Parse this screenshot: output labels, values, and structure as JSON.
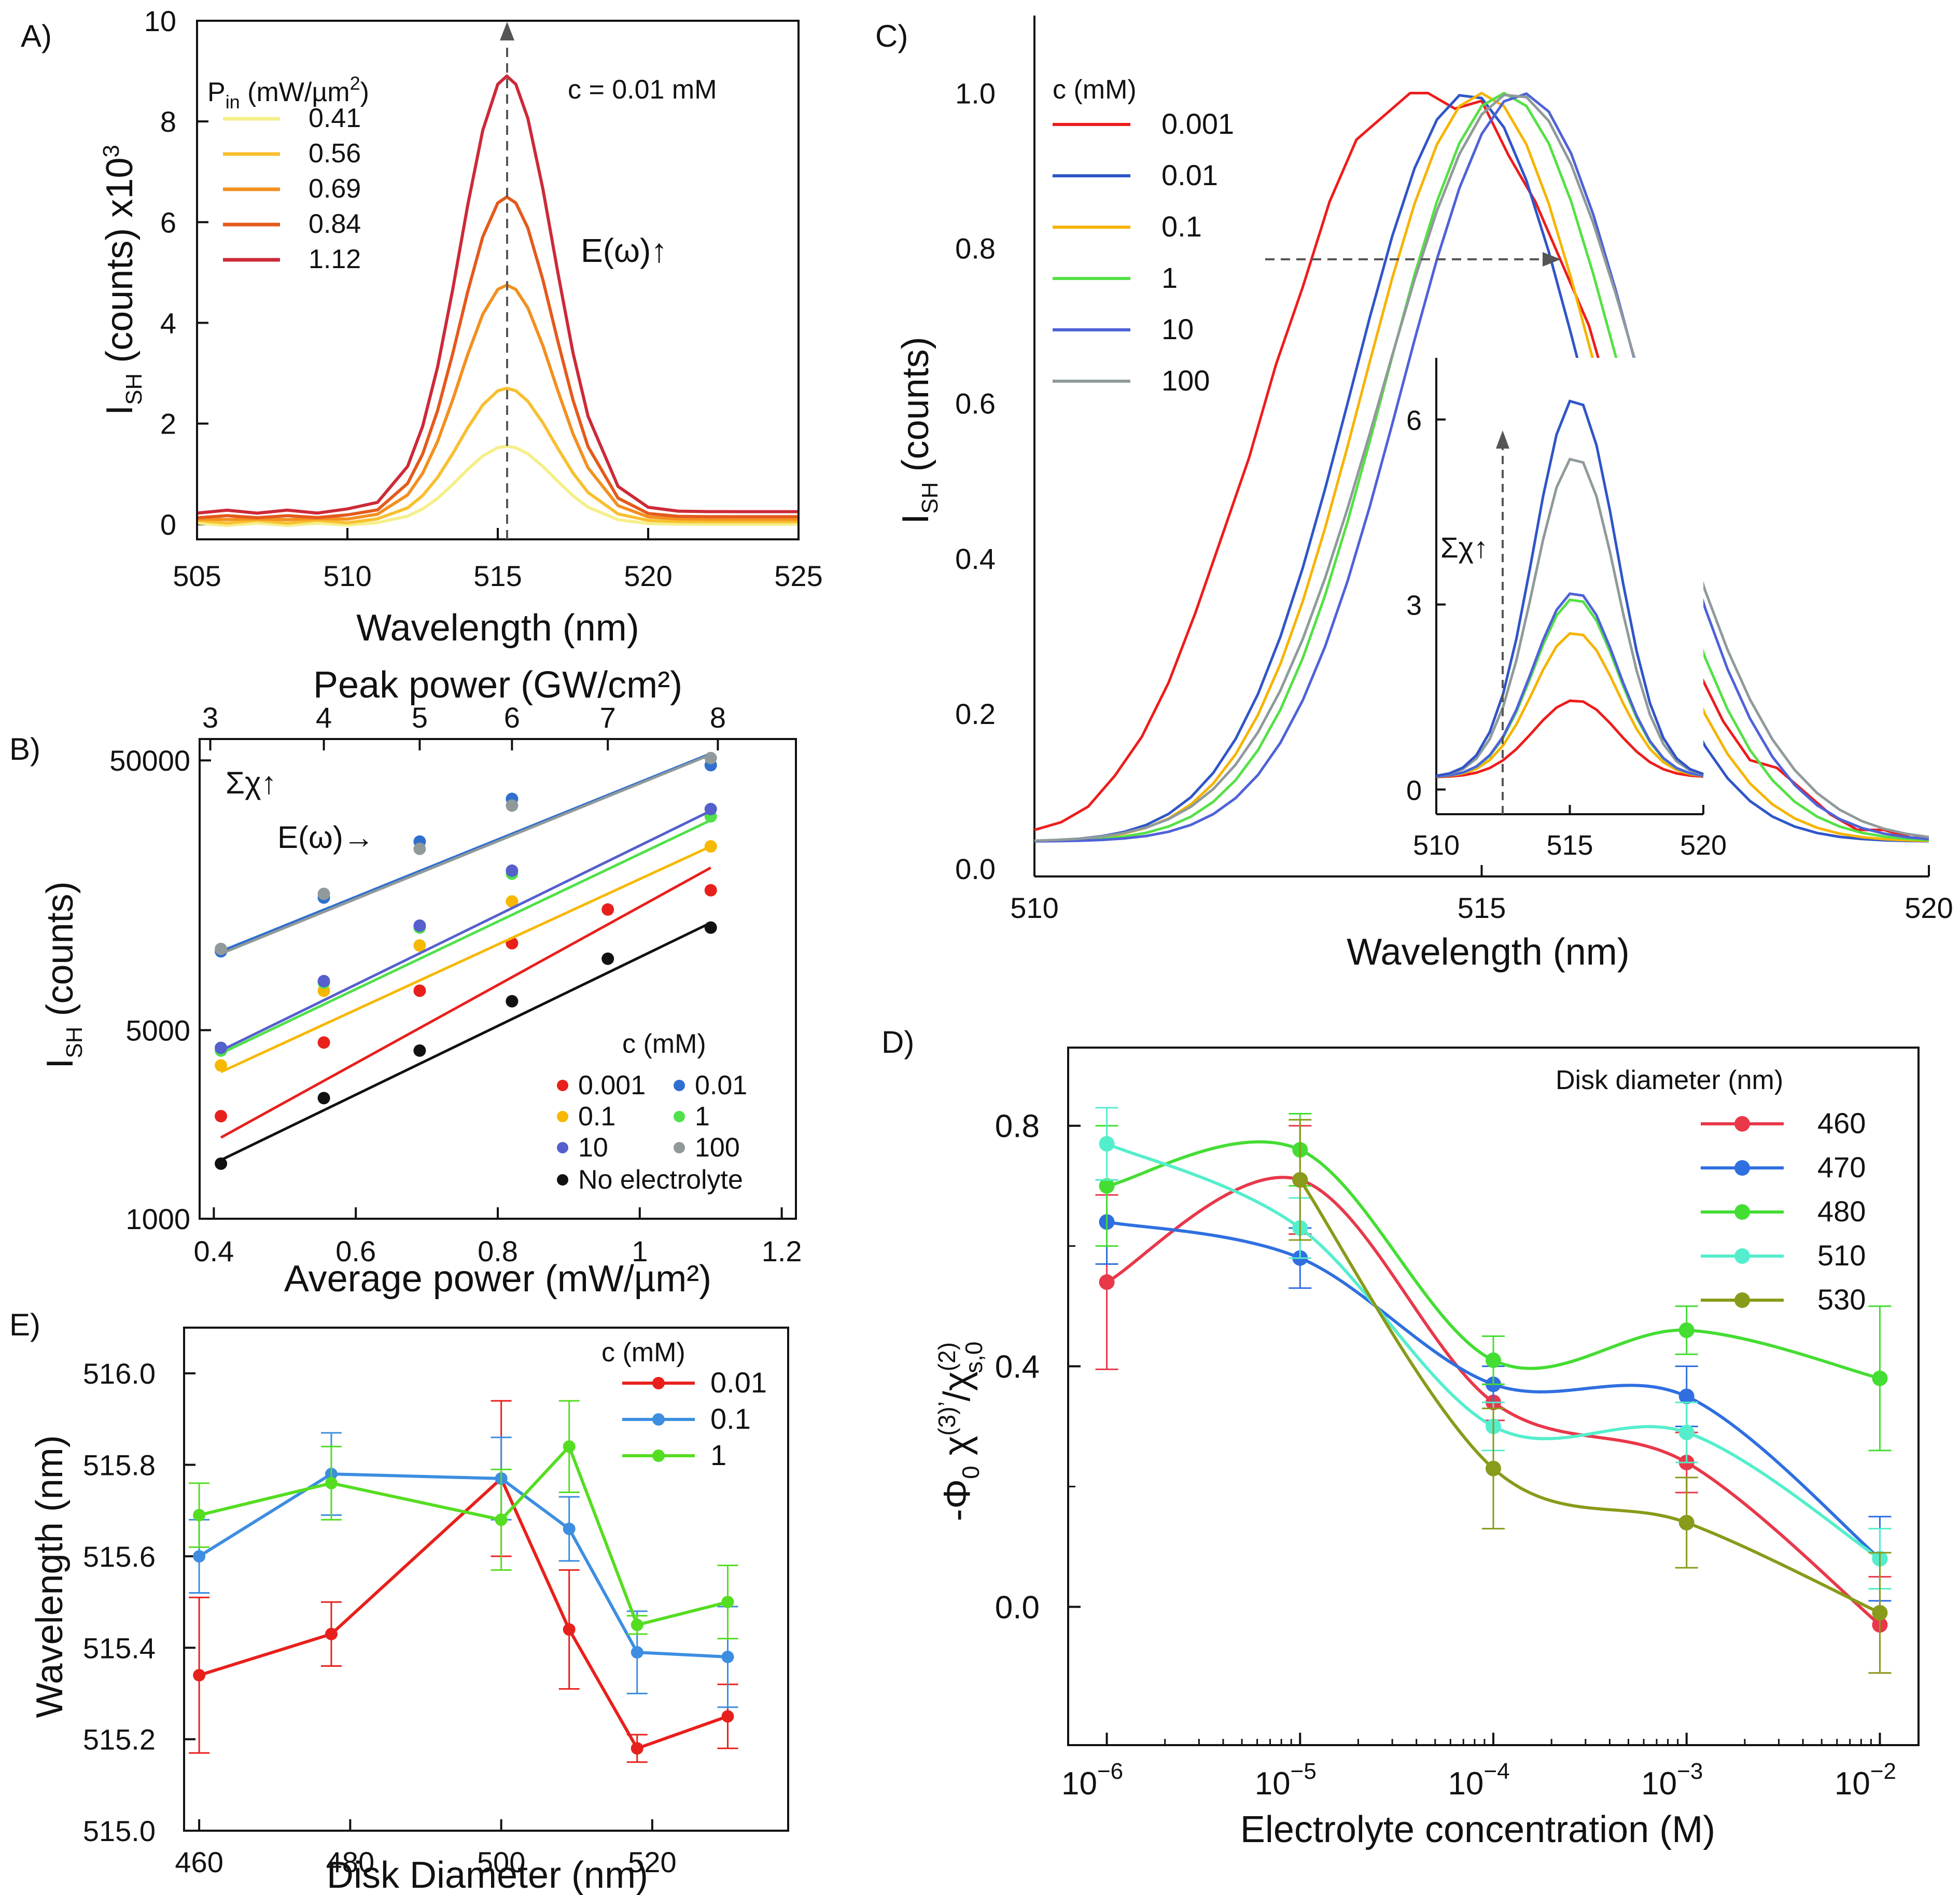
{
  "colors": {
    "axis": "#111111",
    "annotation": "#7a7a7a"
  },
  "chart_data": [
    {
      "panel": "A)",
      "type": "line",
      "xlabel": "Wavelength (nm)",
      "ylabel_main": "I",
      "ylabel_sub": "SH",
      "ylabel_rest": " (counts) x10",
      "ylabel_sup": "3",
      "xlim": [
        505,
        525
      ],
      "ylim": [
        -0.3,
        10
      ],
      "xticks": [
        505,
        510,
        515,
        520,
        525
      ],
      "yticks": [
        0,
        2,
        4,
        6,
        8,
        10
      ],
      "legend_title_main": "P",
      "legend_title_sub": "in",
      "legend_title_rest": " (mW/µm",
      "legend_title_sup": "2",
      "legend_title_end": ")",
      "annotation_conc": "c = 0.01 mM",
      "annotation_field": "E(ω)↑",
      "x": [
        505,
        506,
        507,
        508,
        509,
        510,
        511,
        512,
        512.5,
        513,
        513.5,
        514,
        514.5,
        515,
        515.3,
        515.6,
        516,
        516.5,
        517,
        517.5,
        518,
        519,
        520,
        521,
        522,
        523,
        524,
        525
      ],
      "series": [
        {
          "name": "0.41",
          "color": "#f5ef8a",
          "peak": 1.55,
          "base": 0.0
        },
        {
          "name": "0.56",
          "color": "#f8c030",
          "peak": 2.65,
          "base": 0.05
        },
        {
          "name": "0.69",
          "color": "#f29020",
          "peak": 4.65,
          "base": 0.1
        },
        {
          "name": "0.84",
          "color": "#e45a1c",
          "peak": 6.35,
          "base": 0.15
        },
        {
          "name": "1.12",
          "color": "#cc2a38",
          "peak": 8.65,
          "base": 0.25
        }
      ]
    },
    {
      "panel": "B)",
      "type": "scatter",
      "xlabel": "Average power (mW/µm²)",
      "xlabel_top": "Peak power (GW/cm²)",
      "ylabel_main": "I",
      "ylabel_sub": "SH",
      "ylabel_rest": " (counts)",
      "xlim": [
        0.38,
        1.22
      ],
      "ylim_log": [
        1000,
        60000
      ],
      "xticks": [
        0.4,
        0.6,
        0.8,
        1.0,
        1.2
      ],
      "xtick_labels": [
        "0.4",
        "0.6",
        "0.8",
        "1",
        "1.2"
      ],
      "top_ticks": [
        3,
        4,
        5,
        6,
        7,
        8
      ],
      "top_tick_x": [
        0.395,
        0.555,
        0.69,
        0.82,
        0.955,
        1.11
      ],
      "yticks": [
        1000,
        5000,
        50000
      ],
      "legend_title": "c (mM)",
      "annotation_sum": "Σχ↑",
      "annotation_field": "E(ω)→",
      "x": [
        0.41,
        0.555,
        0.69,
        0.82,
        0.955,
        1.1
      ],
      "series": [
        {
          "name": "0.001",
          "color": "#e8201c",
          "points": [
            2400,
            4500,
            7000,
            10500,
            14000,
            16500
          ],
          "fit": [
            2000,
            20000
          ]
        },
        {
          "name": "0.01",
          "color": "#2f6fd0",
          "points": [
            9800,
            15500,
            25000,
            36000,
            null,
            48000
          ],
          "fit": [
            9800,
            53000
          ]
        },
        {
          "name": "0.1",
          "color": "#f6b800",
          "points": [
            3700,
            7000,
            10300,
            15000,
            null,
            24000
          ],
          "fit": [
            3500,
            24000
          ]
        },
        {
          "name": "1",
          "color": "#4fe04a",
          "points": [
            4200,
            7500,
            12000,
            19000,
            null,
            31000
          ],
          "fit": [
            4100,
            30000
          ]
        },
        {
          "name": "10",
          "color": "#5560cc",
          "points": [
            4300,
            7600,
            12200,
            19500,
            null,
            33000
          ],
          "fit": [
            4200,
            32500
          ]
        },
        {
          "name": "100",
          "color": "#909a9a",
          "points": [
            10000,
            16000,
            23500,
            34000,
            null,
            51000
          ],
          "fit": [
            9600,
            52500
          ]
        },
        {
          "name": "No electrolyte",
          "color": "#111111",
          "points": [
            1600,
            2800,
            4200,
            6400,
            9200,
            12000
          ],
          "fit": [
            1650,
            12500
          ]
        }
      ]
    },
    {
      "panel": "C)",
      "type": "line",
      "xlabel": "Wavelength (nm)",
      "ylabel_main": "I",
      "ylabel_sub": "SH",
      "ylabel_rest": "  (counts)",
      "xlim": [
        510,
        520
      ],
      "ylim": [
        -0.01,
        1.1
      ],
      "xticks": [
        510,
        515,
        520
      ],
      "yticks": [
        0.0,
        0.2,
        0.4,
        0.6,
        0.8,
        1.0
      ],
      "ytick_labels": [
        "0.0",
        "0.2",
        "0.4",
        "0.6",
        "0.8",
        "1.0"
      ],
      "legend_title": "c (mM)",
      "series": [
        {
          "name": "0.001",
          "color": "#ee1c1c",
          "x": [
            510,
            510.3,
            510.6,
            510.9,
            511.2,
            511.5,
            511.8,
            512.1,
            512.4,
            512.7,
            513,
            513.3,
            513.6,
            513.9,
            514.2,
            514.4,
            514.7,
            515,
            515.3,
            515.6,
            515.9,
            516.2,
            516.5,
            516.8,
            517.1,
            517.4,
            517.7,
            518,
            518.3,
            518.6,
            518.9,
            519.2,
            519.5,
            519.8,
            520
          ],
          "y": [
            0.05,
            0.06,
            0.08,
            0.12,
            0.17,
            0.24,
            0.33,
            0.43,
            0.53,
            0.65,
            0.75,
            0.86,
            0.94,
            0.97,
            1.0,
            1.0,
            0.98,
            0.99,
            0.92,
            0.86,
            0.78,
            0.7,
            0.58,
            0.46,
            0.35,
            0.26,
            0.19,
            0.14,
            0.13,
            0.1,
            0.07,
            0.05,
            0.05,
            0.04,
            0.04
          ]
        },
        {
          "name": "0.01",
          "color": "#2f55c8",
          "center": 514.85,
          "width": 1.75
        },
        {
          "name": "0.1",
          "color": "#f6b400",
          "center": 515.0,
          "width": 1.78
        },
        {
          "name": "1",
          "color": "#55e046",
          "center": 515.25,
          "width": 1.8
        },
        {
          "name": "10",
          "color": "#4f62d8",
          "center": 515.45,
          "width": 1.8
        },
        {
          "name": "100",
          "color": "#909a9a",
          "center": 515.35,
          "width": 1.95
        }
      ],
      "inset": {
        "xlim": [
          510,
          520
        ],
        "ylim": [
          -0.4,
          7.0
        ],
        "xticks": [
          510,
          515,
          520
        ],
        "yticks": [
          0,
          3,
          6
        ],
        "annotation": "Σχ↑",
        "series": [
          {
            "name": "0.001",
            "color": "#ee1c1c",
            "peak": 1.45
          },
          {
            "name": "0.1",
            "color": "#f6b400",
            "peak": 2.55
          },
          {
            "name": "1",
            "color": "#55e046",
            "peak": 3.1
          },
          {
            "name": "10",
            "color": "#4f62d8",
            "peak": 3.2
          },
          {
            "name": "100",
            "color": "#909a9a",
            "peak": 5.4
          },
          {
            "name": "0.01",
            "color": "#2f55c8",
            "peak": 6.35
          }
        ]
      }
    },
    {
      "panel": "D)",
      "type": "line",
      "xlabel": "Electrolyte concentration (M)",
      "ylabel": "-Φ₀ χ⁽³⁾′/χ⁽²⁾s,0",
      "ylabel_parts": [
        "-Φ",
        "0",
        " χ",
        "(3)’",
        "/χ",
        "(2)",
        "s,0"
      ],
      "xlim_log10": [
        -6.2,
        -1.8
      ],
      "ylim": [
        -0.23,
        0.93
      ],
      "xticks_log10": [
        -6,
        -5,
        -4,
        -3,
        -2
      ],
      "xtick_base": "10",
      "xtick_exp": [
        "−6",
        "−5",
        "−4",
        "−3",
        "−2"
      ],
      "yticks": [
        0.0,
        0.4,
        0.8
      ],
      "ytick_labels": [
        "0.0",
        "0.4",
        "0.8"
      ],
      "legend_title": "Disk diameter (nm)",
      "x_log10": [
        -6,
        -5,
        -4,
        -3,
        -2
      ],
      "series": [
        {
          "name": "460",
          "color": "#e8384a",
          "y": [
            0.54,
            0.71,
            0.34,
            0.24,
            -0.03
          ],
          "err": [
            0.145,
            0.09,
            0.03,
            0.05,
            0.08
          ]
        },
        {
          "name": "470",
          "color": "#2f6fe0",
          "y": [
            0.64,
            0.58,
            0.37,
            0.35,
            0.08
          ],
          "err": [
            0.07,
            0.05,
            0.03,
            0.05,
            0.07
          ]
        },
        {
          "name": "480",
          "color": "#44dd33",
          "y": [
            0.7,
            0.76,
            0.41,
            0.46,
            0.38
          ],
          "err": [
            0.1,
            0.06,
            0.04,
            0.04,
            0.12
          ]
        },
        {
          "name": "510",
          "color": "#55eecc",
          "y": [
            0.77,
            0.63,
            0.3,
            0.29,
            0.08
          ],
          "err": [
            0.06,
            0.05,
            0.04,
            0.05,
            0.05
          ]
        },
        {
          "name": "530",
          "color": "#8a9a1a",
          "y": [
            null,
            0.71,
            0.23,
            0.14,
            -0.01
          ],
          "err": [
            null,
            0.1,
            0.1,
            0.075,
            0.1
          ]
        }
      ]
    },
    {
      "panel": "E)",
      "type": "line",
      "xlabel": "Disk Diameter (nm)",
      "ylabel": "Wavelength (nm)",
      "xlim": [
        458,
        538
      ],
      "ylim": [
        515.0,
        516.1
      ],
      "xticks": [
        460,
        480,
        500,
        520
      ],
      "yticks": [
        515.0,
        515.2,
        515.4,
        515.6,
        515.8,
        516.0
      ],
      "ytick_labels": [
        "515.0",
        "515.2",
        "515.4",
        "515.6",
        "515.8",
        "516.0"
      ],
      "legend_title": "c (mM)",
      "x": [
        460,
        477.5,
        500,
        509,
        518,
        530
      ],
      "series": [
        {
          "name": "0.01",
          "color": "#e8201c",
          "y": [
            515.34,
            515.43,
            515.77,
            515.44,
            515.18,
            515.25
          ],
          "err": [
            0.17,
            0.07,
            0.17,
            0.13,
            0.03,
            0.07
          ]
        },
        {
          "name": "0.1",
          "color": "#3d8ee0",
          "y": [
            515.6,
            515.78,
            515.77,
            515.66,
            515.39,
            515.38
          ],
          "err": [
            0.08,
            0.09,
            0.09,
            0.07,
            0.09,
            0.11
          ]
        },
        {
          "name": "1",
          "color": "#55dd22",
          "y": [
            515.69,
            515.76,
            515.68,
            515.84,
            515.45,
            515.5
          ],
          "err": [
            0.07,
            0.08,
            0.11,
            0.1,
            0.02,
            0.08
          ]
        }
      ]
    }
  ]
}
